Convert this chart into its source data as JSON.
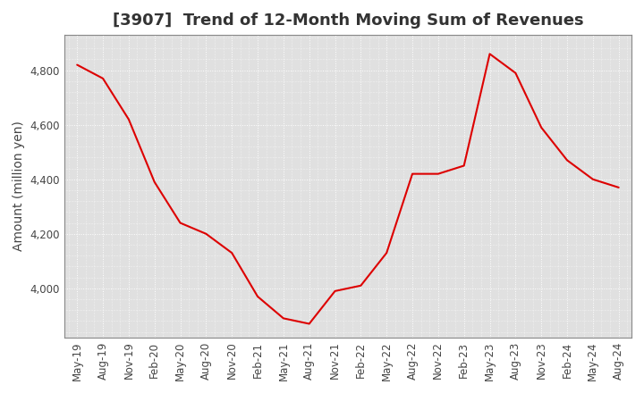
{
  "title": "[3907]  Trend of 12-Month Moving Sum of Revenues",
  "ylabel": "Amount (million yen)",
  "line_color": "#dd0000",
  "background_color": "#ffffff",
  "plot_bg_color": "#e0e0e0",
  "grid_color": "#ffffff",
  "ylim": [
    3820,
    4930
  ],
  "yticks": [
    4000,
    4200,
    4400,
    4600,
    4800
  ],
  "values": [
    4820,
    4770,
    4620,
    4390,
    4240,
    4200,
    4130,
    3970,
    3890,
    3870,
    3990,
    4010,
    4130,
    4420,
    4420,
    4450,
    4860,
    4790,
    4590,
    4470,
    4400,
    4370
  ],
  "xtick_labels": [
    "May-19",
    "Aug-19",
    "Nov-19",
    "Feb-20",
    "May-20",
    "Aug-20",
    "Nov-20",
    "Feb-21",
    "May-21",
    "Aug-21",
    "Nov-21",
    "Feb-22",
    "May-22",
    "Aug-22",
    "Nov-22",
    "Feb-23",
    "May-23",
    "Aug-23",
    "Nov-23",
    "Feb-24",
    "May-24",
    "Aug-24"
  ],
  "title_fontsize": 13,
  "label_fontsize": 10,
  "tick_fontsize": 8.5
}
